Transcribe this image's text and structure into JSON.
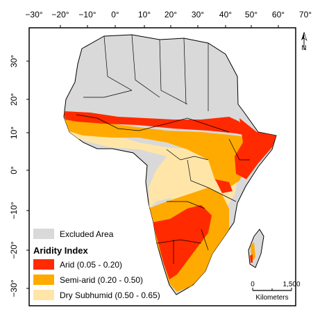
{
  "axes": {
    "top_ticks": [
      "−30°",
      "−20°",
      "−10°",
      "0°",
      "10°",
      "20°",
      "30°",
      "40°",
      "50°",
      "60°",
      "70°"
    ],
    "left_ticks": [
      "30°",
      "20°",
      "10°",
      "0°",
      "−10°",
      "−20°",
      "−30°"
    ]
  },
  "north_arrow": {
    "label": "N",
    "icon": "north-arrow-icon"
  },
  "legend": {
    "excluded_label": "Excluded Area",
    "title": "Aridity Index",
    "items": [
      {
        "label": "Arid (0.05 - 0.20)",
        "color": "#ff2a00"
      },
      {
        "label": "Semi-arid (0.20 - 0.50)",
        "color": "#ffaa00"
      },
      {
        "label": "Dry Subhumid (0.50 - 0.65)",
        "color": "#ffe6a8"
      }
    ],
    "excluded_color": "#d9d9d9"
  },
  "scale_bar": {
    "left_label": "0",
    "right_label": "1,500",
    "unit": "Kilometers"
  }
}
